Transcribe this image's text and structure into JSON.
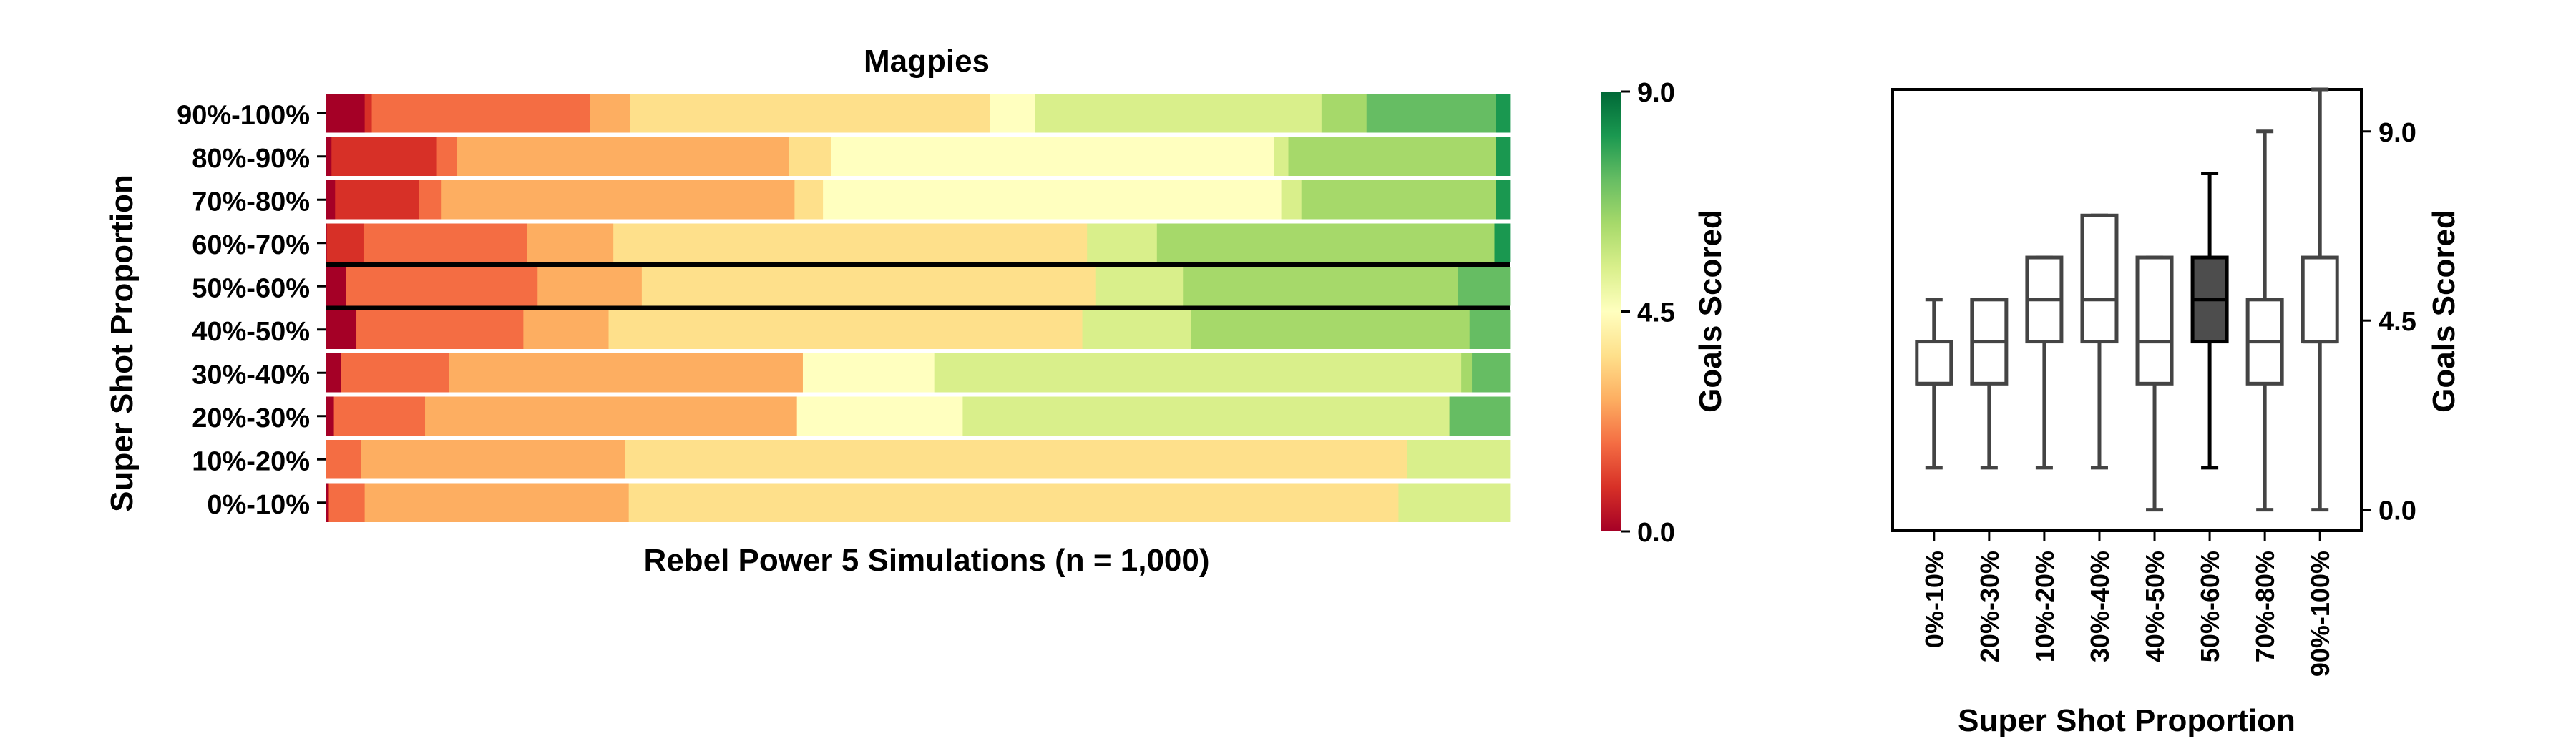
{
  "chart_data": [
    {
      "type": "bar",
      "subtype": "stacked-horizontal-100",
      "title": "Magpies",
      "xlabel": "Rebel Power 5 Simulations (n = 1,000)",
      "ylabel": "Super Shot Proportion",
      "categories": [
        "0%-10%",
        "10%-20%",
        "20%-30%",
        "30%-40%",
        "40%-50%",
        "50%-60%",
        "60%-70%",
        "70%-80%",
        "80%-90%",
        "90%-100%"
      ],
      "highlighted_category": "50%-60%",
      "segment_goal_levels": [
        0,
        1,
        2,
        3,
        4,
        5,
        6,
        7,
        8,
        9
      ],
      "segment_colors": [
        "#a50026",
        "#d73027",
        "#f46d43",
        "#fdae61",
        "#fee08b",
        "#ffffbf",
        "#d9ef8b",
        "#a6d96a",
        "#66bd63",
        "#1a9850",
        "#006837"
      ],
      "rows": [
        {
          "category": "0%-10%",
          "segments": [
            0.2,
            0.1,
            3.0,
            22.3,
            65.0,
            0.0,
            9.4,
            0.0,
            0.0,
            0.0
          ]
        },
        {
          "category": "10%-20%",
          "segments": [
            0.0,
            0.0,
            3.0,
            22.3,
            66.0,
            0.0,
            8.7,
            0.0,
            0.0,
            0.0
          ]
        },
        {
          "category": "20%-30%",
          "segments": [
            0.7,
            0.0,
            7.7,
            31.4,
            0.0,
            14.0,
            41.1,
            0.0,
            5.1,
            0.0
          ]
        },
        {
          "category": "30%-40%",
          "segments": [
            1.3,
            0.0,
            9.1,
            29.9,
            0.0,
            11.1,
            44.5,
            0.9,
            3.2,
            0.0
          ]
        },
        {
          "category": "40%-50%",
          "segments": [
            2.6,
            0.0,
            14.1,
            7.2,
            40.0,
            0.0,
            9.2,
            23.5,
            3.4,
            0.0
          ]
        },
        {
          "category": "50%-60%",
          "segments": [
            1.7,
            0.0,
            16.2,
            8.8,
            38.3,
            0.0,
            7.4,
            23.2,
            4.4,
            0.0
          ]
        },
        {
          "category": "60%-70%",
          "segments": [
            0.1,
            3.1,
            13.8,
            7.3,
            40.0,
            0.0,
            5.9,
            28.5,
            0.0,
            1.3
          ]
        },
        {
          "category": "70%-80%",
          "segments": [
            0.8,
            7.1,
            1.9,
            29.8,
            2.4,
            38.7,
            1.7,
            16.4,
            0.0,
            1.2
          ]
        },
        {
          "category": "80%-90%",
          "segments": [
            0.5,
            8.9,
            1.7,
            28.0,
            3.6,
            37.4,
            1.2,
            17.5,
            0.0,
            1.2
          ]
        },
        {
          "category": "90%-100%",
          "segments": [
            3.3,
            0.6,
            18.4,
            3.4,
            30.4,
            3.8,
            24.2,
            3.8,
            10.9,
            1.2
          ]
        }
      ]
    },
    {
      "type": "colorbar",
      "label": "Goals Scored",
      "range": [
        0.0,
        9.0
      ],
      "ticks": [
        "0.0",
        "4.5",
        "9.0"
      ],
      "colormap": "RdYlGn"
    },
    {
      "type": "boxplot",
      "xlabel": "Super Shot Proportion",
      "ylabel": "Goals Scored",
      "ylim": [
        -0.5,
        10.0
      ],
      "yticks": [
        "0.0",
        "4.5",
        "9.0"
      ],
      "y_axis_side": "right",
      "highlighted_category": "50%-60%",
      "categories": [
        "0%-10%",
        "20%-30%",
        "10%-20%",
        "30%-40%",
        "40%-50%",
        "50%-60%",
        "70%-80%",
        "90%-100%"
      ],
      "boxes": [
        {
          "category": "0%-10%",
          "whislo": 1,
          "q1": 3,
          "median": 3,
          "q3": 4,
          "whishi": 5
        },
        {
          "category": "20%-30%",
          "whislo": 1,
          "q1": 3,
          "median": 4,
          "q3": 5,
          "whishi": 5
        },
        {
          "category": "10%-20%",
          "whislo": 1,
          "q1": 4,
          "median": 5,
          "q3": 6,
          "whishi": 6
        },
        {
          "category": "30%-40%",
          "whislo": 1,
          "q1": 4,
          "median": 5,
          "q3": 7,
          "whishi": 7
        },
        {
          "category": "40%-50%",
          "whislo": 0,
          "q1": 3,
          "median": 4,
          "q3": 6,
          "whishi": 6
        },
        {
          "category": "50%-60%",
          "whislo": 1,
          "q1": 4,
          "median": 5,
          "q3": 6,
          "whishi": 8
        },
        {
          "category": "70%-80%",
          "whislo": 0,
          "q1": 3,
          "median": 4,
          "q3": 5,
          "whishi": 9
        },
        {
          "category": "90%-100%",
          "whislo": 0,
          "q1": 4,
          "median": 4,
          "q3": 6,
          "whishi": 10
        }
      ],
      "colors": {
        "box_fill": "#ffffff",
        "box_edge": "#444444",
        "highlight_fill": "#4d4d4d",
        "highlight_edge": "#000000"
      }
    }
  ]
}
